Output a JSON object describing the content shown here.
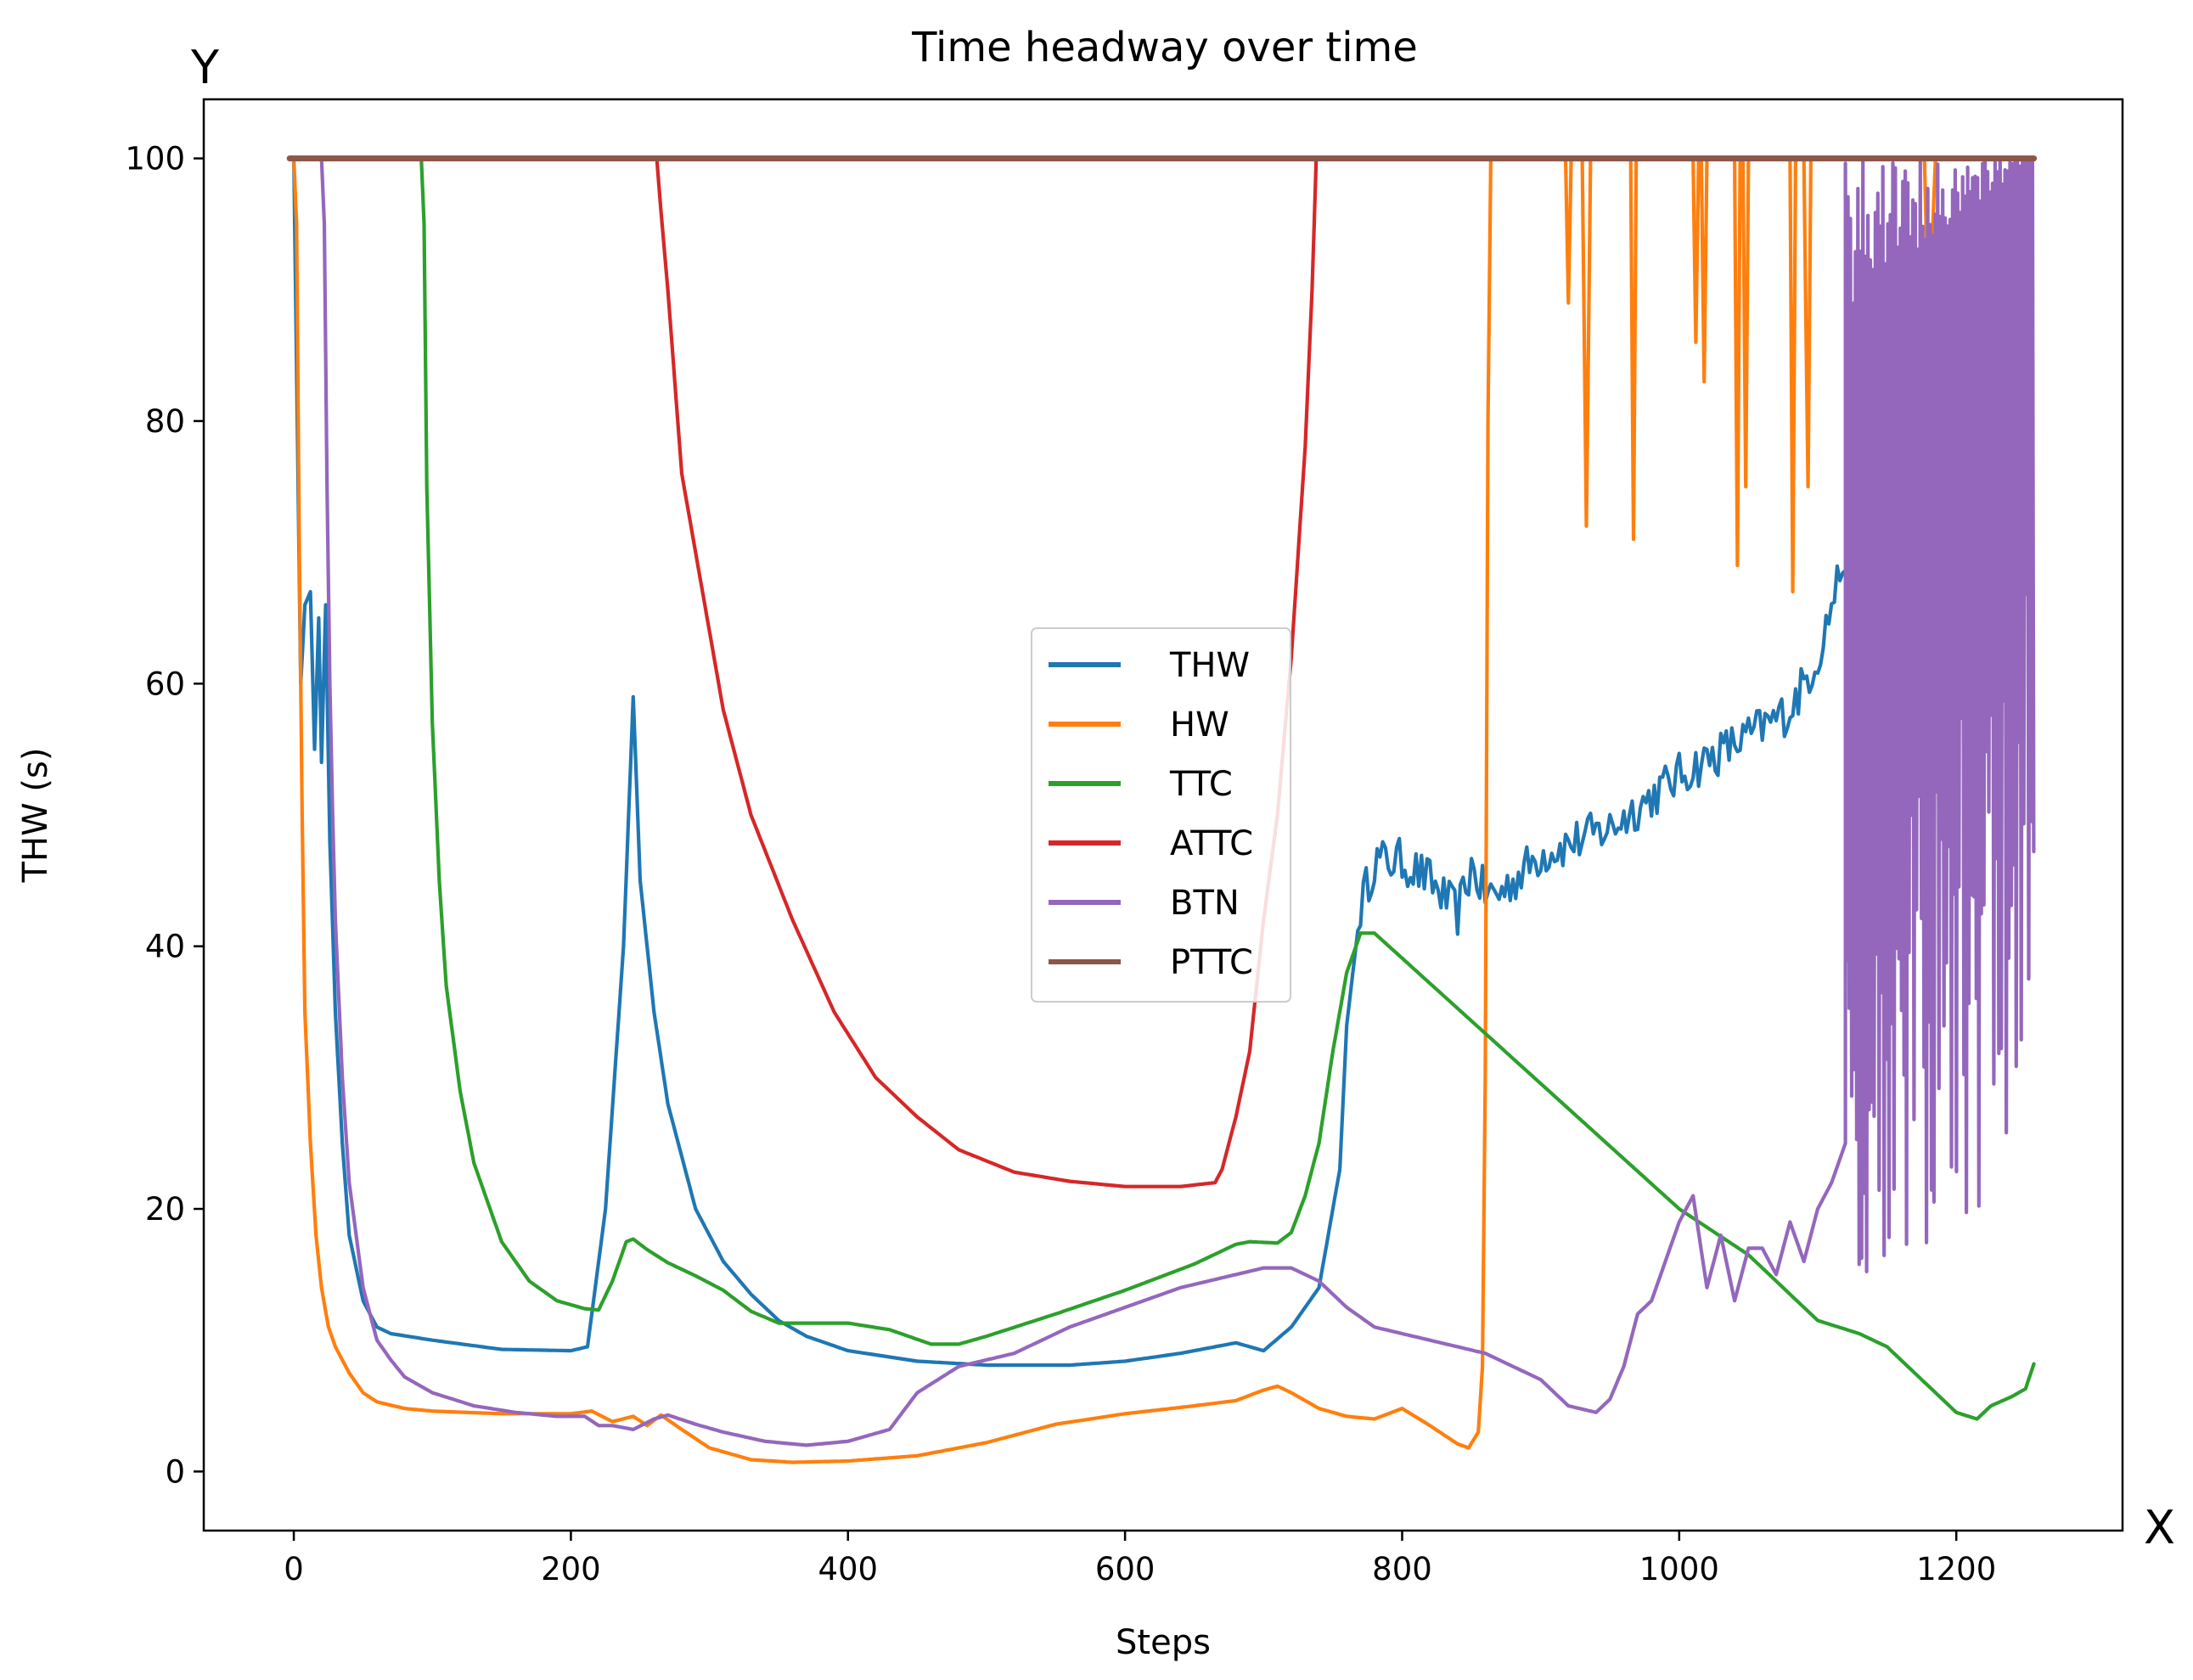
{
  "chart_data": {
    "type": "line",
    "title": "Time headway over time",
    "xlabel": "Steps",
    "ylabel": "THW (s)",
    "corner_labels": {
      "y": "Y",
      "x": "X"
    },
    "xlim": [
      -65,
      1320
    ],
    "ylim": [
      -4.5,
      104.5
    ],
    "xticks": [
      0,
      200,
      400,
      600,
      800,
      1000,
      1200
    ],
    "yticks": [
      0,
      20,
      40,
      60,
      80,
      100
    ],
    "legend_position": "center",
    "series": [
      {
        "name": "THW",
        "color": "#1f77b4",
        "noise": 0.8,
        "x": [
          0,
          5,
          8,
          12,
          15,
          18,
          20,
          23,
          26,
          30,
          35,
          40,
          50,
          60,
          70,
          100,
          150,
          200,
          212,
          225,
          238,
          245,
          250,
          260,
          270,
          290,
          310,
          330,
          350,
          370,
          400,
          450,
          500,
          560,
          600,
          640,
          680,
          700,
          720,
          740,
          755,
          760,
          770,
          780,
          800,
          820,
          840,
          850,
          860,
          870,
          900,
          950,
          1000,
          1050,
          1080,
          1100,
          1110,
          1120,
          1140,
          1160,
          1180
        ],
        "y": [
          100,
          60,
          66,
          67,
          55,
          65,
          54,
          66,
          48,
          35,
          25,
          18,
          13,
          11,
          10.5,
          10,
          9.3,
          9.2,
          9.5,
          20,
          40,
          59,
          45,
          35,
          28,
          20,
          16,
          13.5,
          11.5,
          10.3,
          9.2,
          8.4,
          8.1,
          8.1,
          8.4,
          9,
          9.8,
          9.2,
          11,
          14,
          23,
          34,
          43,
          46.5,
          46.5,
          45,
          42.5,
          46,
          44,
          44,
          47,
          49,
          53,
          56,
          58,
          62,
          66,
          70,
          74,
          78,
          80
        ]
      },
      {
        "name": "HW",
        "color": "#ff7f0e",
        "noise": 0,
        "x": [
          0,
          2,
          4,
          6,
          8,
          12,
          16,
          20,
          25,
          30,
          40,
          50,
          60,
          80,
          100,
          150,
          200,
          215,
          230,
          245,
          255,
          265,
          280,
          300,
          330,
          360,
          400,
          450,
          500,
          550,
          600,
          650,
          680,
          700,
          710,
          720,
          740,
          760,
          780,
          800,
          820,
          840,
          848,
          855,
          858,
          860,
          862,
          864,
          866,
          870,
          900,
          918,
          920,
          922,
          930,
          933,
          936,
          940,
          965,
          967,
          969,
          975,
          1010,
          1012,
          1014,
          1016,
          1018,
          1020,
          1022,
          1024,
          1040,
          1042,
          1044,
          1046,
          1048,
          1050,
          1052,
          1054,
          1060,
          1080,
          1082,
          1084,
          1086,
          1090,
          1093,
          1095,
          1100,
          1175,
          1177,
          1180,
          1185,
          1187,
          1190,
          1255
        ],
        "y": [
          100,
          95,
          70,
          50,
          35,
          25,
          18,
          14,
          11,
          9.5,
          7.5,
          6,
          5.3,
          4.8,
          4.6,
          4.4,
          4.4,
          4.6,
          3.8,
          4.2,
          3.5,
          4.3,
          3.2,
          1.8,
          0.9,
          0.7,
          0.8,
          1.2,
          2.2,
          3.6,
          4.4,
          5,
          5.4,
          6.2,
          6.5,
          6,
          4.8,
          4.2,
          4,
          4.8,
          3.5,
          2.1,
          1.8,
          3,
          8,
          30,
          80,
          100,
          100,
          100,
          100,
          100,
          89,
          100,
          100,
          72,
          100,
          100,
          100,
          71,
          100,
          100,
          100,
          86,
          100,
          100,
          83,
          100,
          100,
          100,
          100,
          69,
          100,
          100,
          75,
          100,
          100,
          100,
          100,
          100,
          67,
          100,
          100,
          100,
          75,
          100,
          100,
          100,
          100,
          87,
          100,
          100,
          100,
          100
        ]
      },
      {
        "name": "TTC",
        "color": "#2ca02c",
        "noise": 0,
        "x": [
          92,
          94,
          96,
          100,
          105,
          110,
          120,
          130,
          150,
          170,
          190,
          210,
          220,
          230,
          240,
          245,
          255,
          270,
          290,
          310,
          330,
          350,
          380,
          400,
          430,
          460,
          480,
          500,
          550,
          600,
          650,
          680,
          690,
          710,
          720,
          730,
          740,
          750,
          760,
          770,
          780,
          1000,
          1050,
          1100,
          1130,
          1150,
          1180,
          1200,
          1215,
          1225,
          1240,
          1250,
          1256
        ],
        "y": [
          100,
          95,
          75,
          57,
          45,
          37,
          29,
          23.5,
          17.5,
          14.5,
          13,
          12.4,
          12.3,
          14.5,
          17.5,
          17.7,
          16.9,
          15.9,
          14.9,
          13.8,
          12.2,
          11.3,
          11.3,
          11.3,
          10.8,
          9.7,
          9.7,
          10.3,
          12,
          13.8,
          15.8,
          17.3,
          17.5,
          17.4,
          18.2,
          21,
          25,
          32,
          38,
          41,
          41,
          20,
          16.5,
          11.5,
          10.5,
          9.5,
          6.5,
          4.5,
          4,
          5,
          5.7,
          6.3,
          8.2
        ]
      },
      {
        "name": "ATTC",
        "color": "#d62728",
        "noise": 0,
        "x": [
          262,
          265,
          270,
          280,
          290,
          310,
          330,
          360,
          390,
          420,
          450,
          480,
          520,
          560,
          600,
          640,
          665,
          670,
          680,
          690,
          700,
          710,
          720,
          730,
          735,
          738
        ],
        "y": [
          100,
          96,
          90,
          76,
          70,
          58,
          50,
          42,
          35,
          30,
          27,
          24.5,
          22.8,
          22.1,
          21.7,
          21.7,
          22,
          23,
          27,
          32,
          42,
          50,
          62,
          78,
          90,
          100
        ]
      },
      {
        "name": "BTN",
        "color": "#9467bd",
        "noise": 0,
        "x": [
          20,
          22,
          24,
          26,
          28,
          30,
          35,
          40,
          50,
          60,
          70,
          80,
          100,
          130,
          160,
          190,
          210,
          220,
          230,
          245,
          260,
          270,
          290,
          310,
          340,
          370,
          400,
          430,
          450,
          480,
          520,
          560,
          600,
          640,
          680,
          700,
          720,
          740,
          760,
          780,
          800,
          820,
          840,
          860,
          880,
          900,
          920,
          940,
          950,
          960,
          970,
          980,
          990,
          1000,
          1010,
          1020,
          1030,
          1040,
          1050,
          1060,
          1070,
          1080,
          1090,
          1100,
          1110,
          1120
        ],
        "y": [
          100,
          95,
          75,
          60,
          50,
          42,
          30,
          22,
          14,
          10,
          8.5,
          7.2,
          6,
          5,
          4.5,
          4.2,
          4.2,
          3.5,
          3.5,
          3.2,
          4,
          4.3,
          3.6,
          3,
          2.3,
          2,
          2.3,
          3.2,
          6,
          8,
          9,
          11,
          12.5,
          14,
          15,
          15.5,
          15.5,
          14.5,
          12.5,
          11,
          10.5,
          10,
          9.5,
          9,
          8,
          7,
          5,
          4.5,
          5.5,
          8,
          12,
          13,
          16,
          19,
          21,
          14,
          18,
          13,
          17,
          17,
          15,
          19,
          16,
          20,
          22,
          25
        ]
      },
      {
        "name": "PTTC",
        "color": "#8c564b",
        "noise": 0,
        "x": [
          -3,
          1256
        ],
        "y": [
          100,
          100
        ]
      }
    ],
    "btn_dense_segment": {
      "x_start": 1120,
      "x_end": 1256,
      "band_low": [
        14,
        40
      ],
      "band_high": 100
    },
    "thw_tail_segment": {
      "x_start": 1120,
      "x_end": 1190,
      "range": [
        62,
        82
      ]
    }
  }
}
